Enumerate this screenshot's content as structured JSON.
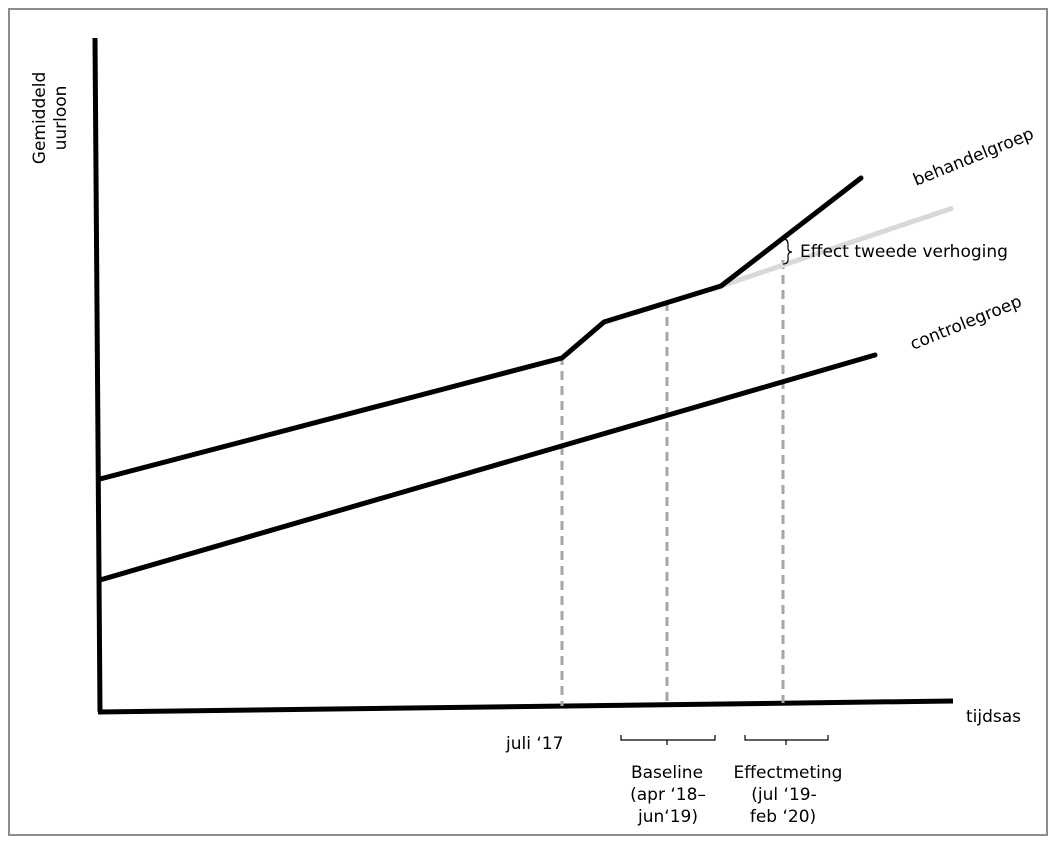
{
  "axes": {
    "y_label_line1": "Gemiddeld",
    "y_label_line2": "uurloon",
    "x_label": "tijdsas"
  },
  "series": {
    "treatment": "behandelgroep",
    "control": "controlegroep"
  },
  "annotations": {
    "effect": "Effect tweede verhoging",
    "july17": "juli ‘17",
    "baseline_title": "Baseline",
    "baseline_line1": "(apr ‘18–",
    "baseline_line2": "jun‘19)",
    "effect_title": "Effectmeting",
    "effect_line1": "(jul ‘19-",
    "effect_line2": "feb ‘20)"
  },
  "colors": {
    "line": "#000000",
    "counterfactual": "#d9d9d9",
    "guide": "#a6a6a6",
    "frame": "#8c8c8c"
  }
}
